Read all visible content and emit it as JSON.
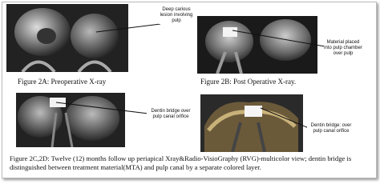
{
  "figures": [
    {
      "note": "Deep carious lesion involving pulp",
      "caption": "Figure 2A: Preoperative X-ray"
    },
    {
      "note": "Material placed into pulp chamber over pulp",
      "caption": "Figure 2B: Post Operative X-ray."
    },
    {
      "note": "Dentin bridge over pulp canal orifice"
    },
    {
      "note": "Dentin bridge: over pulp canal orifice"
    }
  ],
  "caption": "Figure 2C,2D: Twelve (12) months follow up periapical Xray&Radio-VisioGraphy (RVG)-multicolor view; dentin bridge is distinguished between treatment material(MTA) and pulp canal by a separate colored layer."
}
